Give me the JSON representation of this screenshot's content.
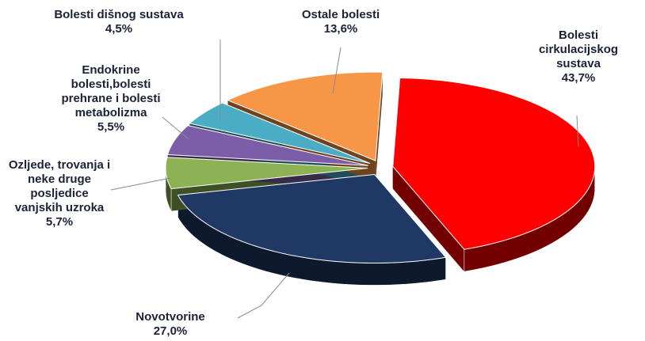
{
  "chart_data": {
    "type": "pie3d",
    "categories": [
      "Bolesti cirkulacijskog sustava",
      "Novotvorine",
      "Ozljede, trovanja i neke druge posljedice vanjskih uzroka",
      "Endokrine bolesti,bolesti prehrane i bolesti metabolizma",
      "Bolesti dišnog sustava",
      "Ostale bolesti"
    ],
    "values": [
      43.7,
      27.0,
      5.7,
      5.5,
      4.5,
      13.6
    ],
    "value_labels": [
      "43,7%",
      "27,0%",
      "5,7%",
      "5,5%",
      "4,5%",
      "13,6%"
    ],
    "colors": [
      "#ff0000",
      "#1f3864",
      "#8db254",
      "#7b5ea7",
      "#4bacc6",
      "#f79646"
    ]
  }
}
